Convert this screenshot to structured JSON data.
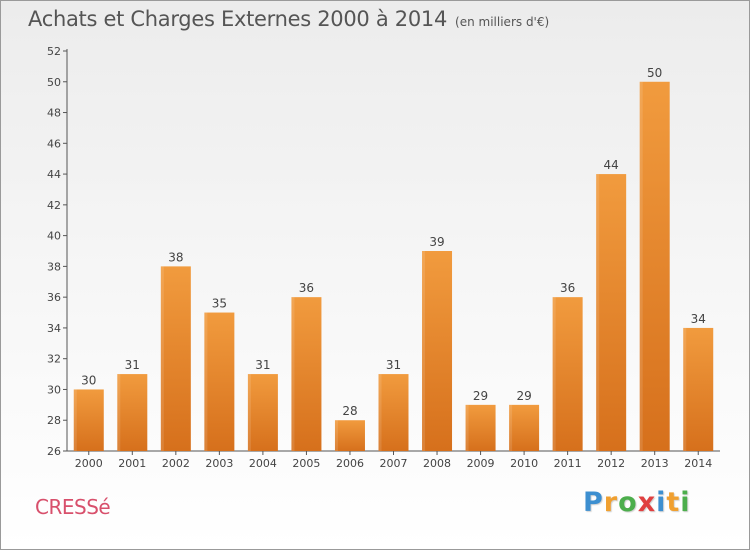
{
  "header": {
    "title": "Achats et Charges Externes 2000 à 2014",
    "subtitle": "(en milliers d'€)"
  },
  "commune": "CRESSé",
  "logo": {
    "letters": [
      "P",
      "r",
      "o",
      "x",
      "i",
      "t",
      "i"
    ],
    "colors": [
      "#3d8fd0",
      "#f0a030",
      "#4cae4c",
      "#e04040",
      "#3d8fd0",
      "#f0a030",
      "#4cae4c"
    ]
  },
  "chart_data": {
    "type": "bar",
    "categories": [
      "2000",
      "2001",
      "2002",
      "2003",
      "2004",
      "2005",
      "2006",
      "2007",
      "2008",
      "2009",
      "2010",
      "2011",
      "2012",
      "2013",
      "2014"
    ],
    "values": [
      30,
      31,
      38,
      35,
      31,
      36,
      28,
      31,
      39,
      29,
      29,
      36,
      44,
      50,
      34
    ],
    "data_labels": [
      "30",
      "31",
      "38",
      "35",
      "31",
      "36",
      "28",
      "31",
      "39",
      "29",
      "29",
      "36",
      "44",
      "50",
      "34"
    ],
    "ylim": [
      26,
      52
    ],
    "yticks": [
      26,
      28,
      30,
      32,
      34,
      36,
      38,
      40,
      42,
      44,
      46,
      48,
      50,
      52
    ],
    "grid": false,
    "bar_color": "#f19b3e",
    "bar_color_dark": "#d6701c"
  }
}
